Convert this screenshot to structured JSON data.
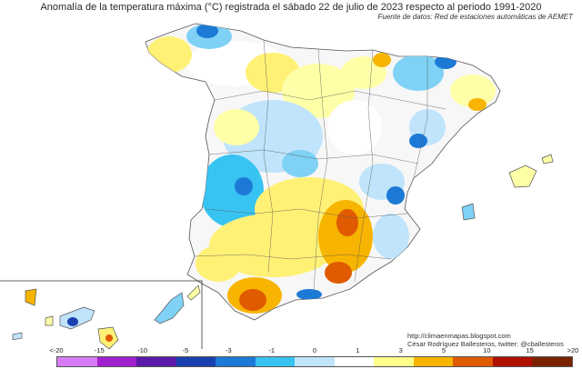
{
  "title": "Anomalía de la temperatura máxima (°C) registrada el sábado 22 de julio de 2023 respecto al periodo 1991-2020",
  "source": "Fuente de datos: Red de estaciones automáticas de AEMET",
  "credit_url": "http://climaenmapas.blogspot.com",
  "credit_author": "César Rodríguez Ballesteros, twitter: @cballesteros",
  "legend": {
    "ticks": [
      "<-20",
      "-15",
      "-10",
      "-5",
      "-3",
      "-1",
      "0",
      "1",
      "3",
      "5",
      "10",
      "15",
      ">20"
    ],
    "colors": [
      "#d77cf5",
      "#a020d0",
      "#5a1aa8",
      "#1a3fb0",
      "#1c7ad6",
      "#38c4f2",
      "#bfe4fb",
      "#ffffff",
      "#ffff8a",
      "#f7b400",
      "#e05a00",
      "#b01000",
      "#7a2200"
    ]
  },
  "palette": {
    "cold1": "#bfe4fb",
    "cold2": "#7fd1f5",
    "cold3": "#38c4f2",
    "cold4": "#1c7ad6",
    "cold5": "#1a3fb0",
    "neutral": "#f7f7f7",
    "warm1": "#ffffa8",
    "warm2": "#fff176",
    "warm3": "#f7b400",
    "warm4": "#e05a00",
    "warm5": "#b01000"
  }
}
